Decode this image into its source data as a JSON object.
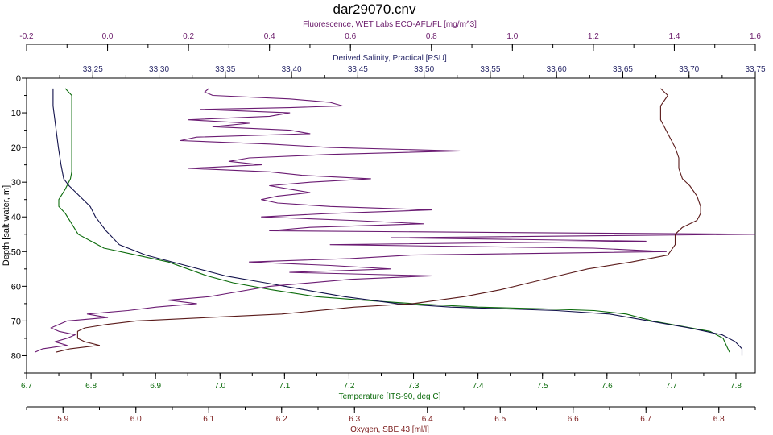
{
  "chart_data": {
    "type": "line",
    "title": "dar29070.cnv",
    "grid": false,
    "legend": "none",
    "axes": {
      "fluorescence": {
        "label": "Fluorescence, WET Labs ECO-AFL/FL [mg/m^3]",
        "range": [
          -0.2,
          1.6
        ],
        "ticks": [
          "-0.2",
          "0.0",
          "0.2",
          "0.4",
          "0.6",
          "0.8",
          "1.0",
          "1.2",
          "1.4",
          "1.6"
        ],
        "color": "#6a1a6a"
      },
      "salinity": {
        "label": "Derived Salinity, Practical [PSU]",
        "range": [
          33.2,
          33.75
        ],
        "ticks": [
          "33.25",
          "33.30",
          "33.35",
          "33.40",
          "33.45",
          "33.50",
          "33.55",
          "33.60",
          "33.65",
          "33.70",
          "33.75"
        ],
        "color": "#2a2a6a"
      },
      "depth": {
        "label": "Depth [salt water, m]",
        "range": [
          0,
          85
        ],
        "ticks": [
          "0",
          "10",
          "20",
          "30",
          "40",
          "50",
          "60",
          "70",
          "80"
        ],
        "color": "#000000"
      },
      "temperature": {
        "label": "Temperature [ITS-90, deg C]",
        "range": [
          6.7,
          7.83
        ],
        "ticks": [
          "6.7",
          "6.8",
          "6.9",
          "7.0",
          "7.1",
          "7.2",
          "7.3",
          "7.4",
          "7.5",
          "7.6",
          "7.7",
          "7.8"
        ],
        "color": "#0a6a0a"
      },
      "oxygen": {
        "label": "Oxygen, SBE 43 [ml/l]",
        "range": [
          5.85,
          6.85
        ],
        "ticks": [
          "5.9",
          "6.0",
          "6.1",
          "6.2",
          "6.3",
          "6.4",
          "6.5",
          "6.6",
          "6.7",
          "6.8"
        ],
        "color": "#7a1a1a"
      }
    },
    "series": [
      {
        "axis": "temperature",
        "color": "#0b6b0b",
        "points": [
          [
            6.76,
            3
          ],
          [
            6.77,
            5
          ],
          [
            6.77,
            8
          ],
          [
            6.77,
            12
          ],
          [
            6.77,
            16
          ],
          [
            6.77,
            20
          ],
          [
            6.77,
            24
          ],
          [
            6.77,
            27
          ],
          [
            6.768,
            29
          ],
          [
            6.76,
            32
          ],
          [
            6.75,
            35
          ],
          [
            6.75,
            37
          ],
          [
            6.76,
            39
          ],
          [
            6.77,
            42
          ],
          [
            6.78,
            45
          ],
          [
            6.8,
            47
          ],
          [
            6.82,
            49
          ],
          [
            6.87,
            51
          ],
          [
            6.92,
            53
          ],
          [
            6.95,
            55
          ],
          [
            6.98,
            57
          ],
          [
            7.0,
            58
          ],
          [
            7.02,
            59
          ],
          [
            7.08,
            61
          ],
          [
            7.15,
            63
          ],
          [
            7.22,
            64
          ],
          [
            7.3,
            65
          ],
          [
            7.4,
            66
          ],
          [
            7.5,
            66.5
          ],
          [
            7.58,
            67
          ],
          [
            7.63,
            68
          ],
          [
            7.67,
            70
          ],
          [
            7.7,
            71
          ],
          [
            7.73,
            72
          ],
          [
            7.76,
            73
          ],
          [
            7.78,
            75
          ],
          [
            7.785,
            77
          ],
          [
            7.79,
            79
          ]
        ]
      },
      {
        "axis": "salinity",
        "color": "#10104a",
        "points": [
          [
            33.22,
            3
          ],
          [
            33.22,
            8
          ],
          [
            33.222,
            14
          ],
          [
            33.224,
            20
          ],
          [
            33.226,
            25
          ],
          [
            33.228,
            29
          ],
          [
            33.232,
            31
          ],
          [
            33.24,
            34
          ],
          [
            33.248,
            37
          ],
          [
            33.252,
            40
          ],
          [
            33.26,
            44
          ],
          [
            33.27,
            48
          ],
          [
            33.29,
            51
          ],
          [
            33.32,
            54
          ],
          [
            33.35,
            57
          ],
          [
            33.38,
            59
          ],
          [
            33.41,
            61
          ],
          [
            33.44,
            63
          ],
          [
            33.48,
            65
          ],
          [
            33.52,
            66
          ],
          [
            33.56,
            66.5
          ],
          [
            33.6,
            67
          ],
          [
            33.64,
            68
          ],
          [
            33.67,
            70
          ],
          [
            33.7,
            72
          ],
          [
            33.725,
            74
          ],
          [
            33.735,
            76
          ],
          [
            33.74,
            78
          ],
          [
            33.74,
            80
          ]
        ]
      },
      {
        "axis": "fluorescence",
        "color": "#6a1a72",
        "points": [
          [
            0.25,
            3
          ],
          [
            0.24,
            4
          ],
          [
            0.26,
            5
          ],
          [
            0.45,
            6
          ],
          [
            0.55,
            7
          ],
          [
            0.58,
            8
          ],
          [
            0.45,
            8.5
          ],
          [
            0.23,
            9
          ],
          [
            0.45,
            10
          ],
          [
            0.4,
            11
          ],
          [
            0.2,
            12
          ],
          [
            0.35,
            13
          ],
          [
            0.26,
            14
          ],
          [
            0.45,
            15
          ],
          [
            0.5,
            16
          ],
          [
            0.22,
            17
          ],
          [
            0.18,
            18
          ],
          [
            0.4,
            19
          ],
          [
            0.55,
            20
          ],
          [
            0.87,
            21
          ],
          [
            0.55,
            22
          ],
          [
            0.35,
            23
          ],
          [
            0.3,
            24
          ],
          [
            0.38,
            25
          ],
          [
            0.2,
            26
          ],
          [
            0.4,
            27
          ],
          [
            0.48,
            28
          ],
          [
            0.65,
            29
          ],
          [
            0.5,
            30
          ],
          [
            0.4,
            31
          ],
          [
            0.45,
            32
          ],
          [
            0.5,
            33
          ],
          [
            0.42,
            34
          ],
          [
            0.38,
            35
          ],
          [
            0.42,
            36
          ],
          [
            0.55,
            37
          ],
          [
            0.8,
            38
          ],
          [
            0.55,
            39
          ],
          [
            0.38,
            40
          ],
          [
            0.6,
            41
          ],
          [
            0.78,
            42
          ],
          [
            0.5,
            43
          ],
          [
            0.4,
            44
          ],
          [
            1.6,
            45
          ],
          [
            0.7,
            46
          ],
          [
            1.33,
            47
          ],
          [
            0.55,
            48
          ],
          [
            1.2,
            49
          ],
          [
            1.38,
            50
          ],
          [
            0.75,
            51
          ],
          [
            0.6,
            52
          ],
          [
            0.35,
            53
          ],
          [
            0.55,
            54
          ],
          [
            0.7,
            55
          ],
          [
            0.45,
            56
          ],
          [
            0.8,
            57
          ],
          [
            0.6,
            58
          ],
          [
            0.4,
            60
          ],
          [
            0.3,
            62
          ],
          [
            0.25,
            63
          ],
          [
            0.15,
            64
          ],
          [
            0.22,
            65
          ],
          [
            0.12,
            66
          ],
          [
            0.05,
            67
          ],
          [
            -0.05,
            68
          ],
          [
            0.0,
            69
          ],
          [
            -0.1,
            70
          ],
          [
            -0.12,
            71
          ],
          [
            -0.14,
            72
          ],
          [
            -0.12,
            73
          ],
          [
            -0.08,
            74
          ],
          [
            -0.1,
            75
          ],
          [
            -0.13,
            76
          ],
          [
            -0.1,
            77
          ],
          [
            -0.16,
            78
          ],
          [
            -0.18,
            79
          ]
        ]
      },
      {
        "axis": "oxygen",
        "color": "#5a1a1a",
        "points": [
          [
            6.72,
            3
          ],
          [
            6.73,
            5
          ],
          [
            6.72,
            8
          ],
          [
            6.72,
            12
          ],
          [
            6.73,
            16
          ],
          [
            6.74,
            20
          ],
          [
            6.745,
            23
          ],
          [
            6.745,
            26
          ],
          [
            6.75,
            29
          ],
          [
            6.76,
            31
          ],
          [
            6.77,
            34
          ],
          [
            6.775,
            37
          ],
          [
            6.775,
            39
          ],
          [
            6.77,
            41
          ],
          [
            6.75,
            43
          ],
          [
            6.74,
            45
          ],
          [
            6.74,
            48
          ],
          [
            6.73,
            51
          ],
          [
            6.68,
            53
          ],
          [
            6.62,
            55
          ],
          [
            6.58,
            57
          ],
          [
            6.54,
            59
          ],
          [
            6.5,
            61
          ],
          [
            6.45,
            63
          ],
          [
            6.38,
            65
          ],
          [
            6.3,
            66
          ],
          [
            6.2,
            68
          ],
          [
            6.1,
            69
          ],
          [
            6.0,
            70
          ],
          [
            5.96,
            71
          ],
          [
            5.93,
            72
          ],
          [
            5.92,
            73
          ],
          [
            5.92,
            75
          ],
          [
            5.93,
            76
          ],
          [
            5.95,
            77
          ],
          [
            5.91,
            78
          ],
          [
            5.89,
            79
          ]
        ]
      }
    ]
  }
}
